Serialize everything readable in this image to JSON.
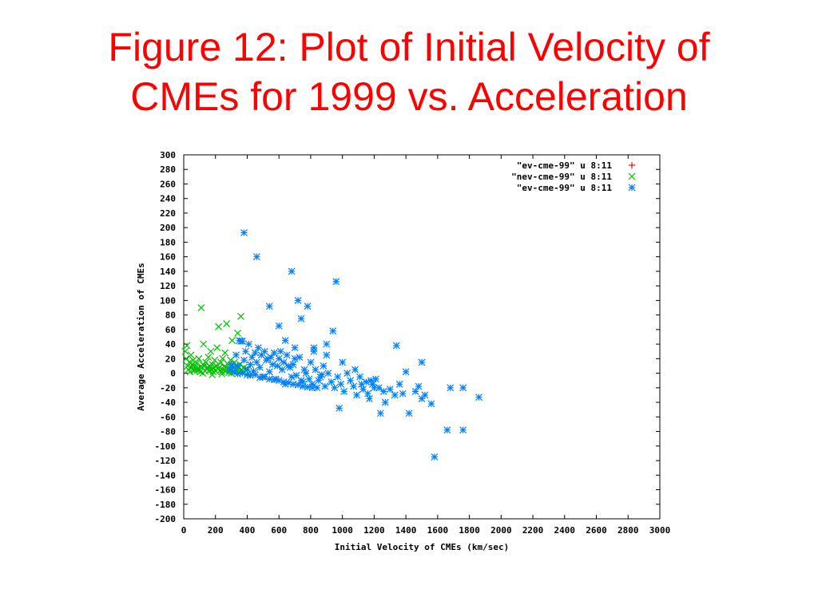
{
  "slide": {
    "title_line1": "Figure 12: Plot of Initial Velocity of",
    "title_line2": "CMEs for 1999 vs. Acceleration"
  },
  "chart_data": {
    "type": "scatter",
    "xlabel": "Initial Velocity of CMEs (km/sec)",
    "ylabel": "Average Acceleration of CMEs",
    "xlim": [
      0,
      3000
    ],
    "ylim": [
      -200,
      300
    ],
    "xticks": [
      0,
      200,
      400,
      600,
      800,
      1000,
      1200,
      1400,
      1600,
      1800,
      2000,
      2200,
      2400,
      2600,
      2800,
      3000
    ],
    "yticks": [
      300,
      280,
      260,
      240,
      220,
      200,
      180,
      160,
      140,
      120,
      100,
      80,
      60,
      40,
      20,
      0,
      -20,
      -40,
      -60,
      -80,
      -100,
      -120,
      -140,
      -160,
      -180,
      -200
    ],
    "grid": false,
    "legend_position": "top-right",
    "series": [
      {
        "name": "\"ev-cme-99\" u 8:11",
        "color": "#ff0000",
        "marker": "plus",
        "points": []
      },
      {
        "name": "\"nev-cme-99\" u 8:11",
        "color": "#00c000",
        "marker": "cross",
        "points": [
          [
            10,
            30
          ],
          [
            15,
            20
          ],
          [
            20,
            38
          ],
          [
            25,
            10
          ],
          [
            30,
            5
          ],
          [
            35,
            15
          ],
          [
            40,
            2
          ],
          [
            45,
            25
          ],
          [
            50,
            8
          ],
          [
            55,
            12
          ],
          [
            60,
            18
          ],
          [
            65,
            3
          ],
          [
            70,
            6
          ],
          [
            75,
            10
          ],
          [
            80,
            14
          ],
          [
            85,
            4
          ],
          [
            90,
            7
          ],
          [
            95,
            20
          ],
          [
            100,
            5
          ],
          [
            105,
            2
          ],
          [
            110,
            90
          ],
          [
            115,
            8
          ],
          [
            120,
            12
          ],
          [
            125,
            40
          ],
          [
            130,
            10
          ],
          [
            135,
            3
          ],
          [
            140,
            15
          ],
          [
            145,
            6
          ],
          [
            150,
            8
          ],
          [
            155,
            22
          ],
          [
            160,
            4
          ],
          [
            165,
            9
          ],
          [
            170,
            30
          ],
          [
            175,
            5
          ],
          [
            180,
            12
          ],
          [
            185,
            2
          ],
          [
            190,
            7
          ],
          [
            195,
            18
          ],
          [
            200,
            3
          ],
          [
            205,
            10
          ],
          [
            210,
            35
          ],
          [
            215,
            6
          ],
          [
            220,
            64
          ],
          [
            225,
            8
          ],
          [
            230,
            4
          ],
          [
            235,
            15
          ],
          [
            240,
            2
          ],
          [
            245,
            20
          ],
          [
            250,
            5
          ],
          [
            255,
            9
          ],
          [
            260,
            28
          ],
          [
            265,
            3
          ],
          [
            270,
            68
          ],
          [
            275,
            7
          ],
          [
            280,
            12
          ],
          [
            285,
            1
          ],
          [
            290,
            6
          ],
          [
            295,
            18
          ],
          [
            300,
            4
          ],
          [
            305,
            45
          ],
          [
            310,
            8
          ],
          [
            315,
            2
          ],
          [
            320,
            15
          ],
          [
            325,
            5
          ],
          [
            330,
            10
          ],
          [
            335,
            3
          ],
          [
            340,
            55
          ],
          [
            345,
            7
          ],
          [
            350,
            2
          ],
          [
            355,
            12
          ],
          [
            360,
            78
          ],
          [
            365,
            5
          ],
          [
            370,
            3
          ],
          [
            380,
            8
          ],
          [
            390,
            4
          ],
          [
            400,
            6
          ],
          [
            120,
            0
          ],
          [
            180,
            -2
          ],
          [
            240,
            -1
          ],
          [
            300,
            0
          ]
        ]
      },
      {
        "name": "\"ev-cme-99\" u 8:11",
        "color": "#0080ff",
        "marker": "star",
        "points": [
          [
            380,
            193
          ],
          [
            460,
            160
          ],
          [
            540,
            92
          ],
          [
            600,
            65
          ],
          [
            680,
            140
          ],
          [
            720,
            100
          ],
          [
            740,
            75
          ],
          [
            780,
            92
          ],
          [
            820,
            35
          ],
          [
            940,
            58
          ],
          [
            960,
            126
          ],
          [
            1340,
            38
          ],
          [
            1400,
            2
          ],
          [
            1500,
            15
          ],
          [
            1520,
            -30
          ],
          [
            1560,
            -42
          ],
          [
            1580,
            -115
          ],
          [
            1660,
            -78
          ],
          [
            1680,
            -20
          ],
          [
            1760,
            -20
          ],
          [
            1760,
            -78
          ],
          [
            1860,
            -33
          ],
          [
            980,
            -48
          ],
          [
            1240,
            -55
          ],
          [
            1420,
            -55
          ],
          [
            1080,
            5
          ],
          [
            1180,
            -10
          ],
          [
            1200,
            -20
          ],
          [
            1260,
            -25
          ],
          [
            1300,
            -22
          ],
          [
            1380,
            -28
          ],
          [
            1460,
            -25
          ],
          [
            1480,
            -18
          ],
          [
            1500,
            -35
          ],
          [
            1120,
            -15
          ],
          [
            1160,
            -28
          ],
          [
            900,
            25
          ],
          [
            880,
            10
          ],
          [
            860,
            -5
          ],
          [
            840,
            -20
          ],
          [
            800,
            15
          ],
          [
            760,
            5
          ],
          [
            740,
            -10
          ],
          [
            700,
            20
          ],
          [
            680,
            -5
          ],
          [
            660,
            10
          ],
          [
            640,
            -15
          ],
          [
            620,
            5
          ],
          [
            600,
            20
          ],
          [
            580,
            -8
          ],
          [
            560,
            12
          ],
          [
            540,
            2
          ],
          [
            520,
            18
          ],
          [
            500,
            -5
          ],
          [
            480,
            8
          ],
          [
            460,
            15
          ],
          [
            440,
            3
          ],
          [
            420,
            12
          ],
          [
            400,
            5
          ],
          [
            380,
            18
          ],
          [
            360,
            44
          ],
          [
            340,
            10
          ],
          [
            330,
            25
          ],
          [
            320,
            2
          ],
          [
            310,
            8
          ],
          [
            300,
            12
          ],
          [
            290,
            4
          ],
          [
            350,
            45
          ],
          [
            370,
            44
          ],
          [
            390,
            30
          ],
          [
            410,
            40
          ],
          [
            430,
            22
          ],
          [
            450,
            28
          ],
          [
            470,
            35
          ],
          [
            490,
            25
          ],
          [
            510,
            30
          ],
          [
            530,
            20
          ],
          [
            550,
            22
          ],
          [
            570,
            28
          ],
          [
            590,
            10
          ],
          [
            610,
            30
          ],
          [
            630,
            15
          ],
          [
            650,
            25
          ],
          [
            670,
            8
          ],
          [
            690,
            12
          ],
          [
            710,
            -3
          ],
          [
            730,
            22
          ],
          [
            750,
            -12
          ],
          [
            770,
            0
          ],
          [
            790,
            -8
          ],
          [
            810,
            -15
          ],
          [
            830,
            5
          ],
          [
            850,
            -10
          ],
          [
            870,
            -2
          ],
          [
            890,
            -18
          ],
          [
            910,
            0
          ],
          [
            930,
            -12
          ],
          [
            950,
            -20
          ],
          [
            970,
            -5
          ],
          [
            990,
            -15
          ],
          [
            1010,
            -25
          ],
          [
            1030,
            0
          ],
          [
            1050,
            -10
          ],
          [
            1070,
            -18
          ],
          [
            1090,
            -30
          ],
          [
            1110,
            -5
          ],
          [
            1130,
            -22
          ],
          [
            1150,
            -12
          ],
          [
            1170,
            -35
          ],
          [
            1190,
            -15
          ],
          [
            1210,
            -8
          ],
          [
            1230,
            -20
          ],
          [
            1270,
            -40
          ],
          [
            1330,
            -30
          ],
          [
            1360,
            -15
          ],
          [
            420,
            -3
          ],
          [
            450,
            -2
          ],
          [
            480,
            -6
          ],
          [
            510,
            -5
          ],
          [
            540,
            -8
          ],
          [
            570,
            -9
          ],
          [
            600,
            -10
          ],
          [
            630,
            -12
          ],
          [
            660,
            -13
          ],
          [
            690,
            -15
          ],
          [
            720,
            -16
          ],
          [
            750,
            -18
          ],
          [
            780,
            -19
          ],
          [
            810,
            -20
          ],
          [
            340,
            -1
          ],
          [
            370,
            0
          ],
          [
            400,
            -2
          ],
          [
            640,
            45
          ],
          [
            700,
            35
          ],
          [
            820,
            30
          ],
          [
            900,
            40
          ],
          [
            1000,
            15
          ]
        ]
      }
    ]
  }
}
